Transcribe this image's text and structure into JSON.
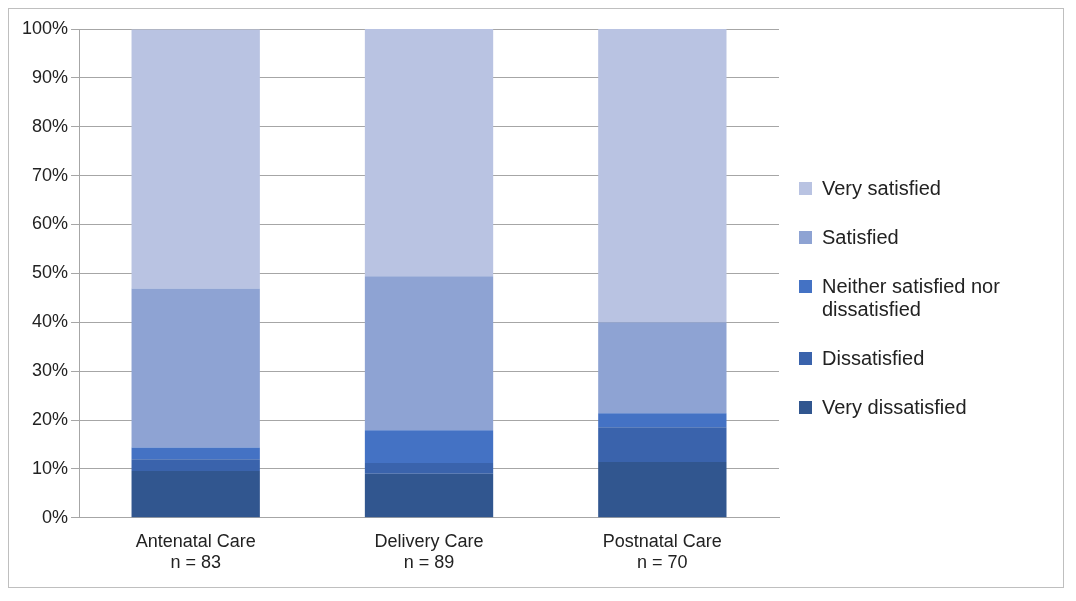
{
  "chart_data": {
    "type": "bar",
    "stacked": true,
    "categories": [
      "Antenatal Care\nn = 83",
      "Delivery Care\nn = 89",
      "Postnatal Care\nn = 70"
    ],
    "series": [
      {
        "name": "Very dissatisfied",
        "color": "#31568f",
        "values": [
          9.6,
          9.0,
          11.4
        ]
      },
      {
        "name": "Dissatisfied",
        "color": "#3a63ac",
        "values": [
          2.4,
          2.2,
          7.1
        ]
      },
      {
        "name": "Neither satisfied nor dissatisfied",
        "color": "#4472c4",
        "values": [
          2.4,
          6.7,
          2.9
        ]
      },
      {
        "name": "Satisfied",
        "color": "#8ea3d3",
        "values": [
          32.5,
          31.5,
          18.6
        ]
      },
      {
        "name": "Very satisfied",
        "color": "#b9c3e2",
        "values": [
          53.0,
          50.6,
          60.0
        ]
      }
    ],
    "ylim": [
      0,
      100
    ],
    "yticks": [
      {
        "value": 0,
        "label": "0%"
      },
      {
        "value": 10,
        "label": "10%"
      },
      {
        "value": 20,
        "label": "20%"
      },
      {
        "value": 30,
        "label": "30%"
      },
      {
        "value": 40,
        "label": "40%"
      },
      {
        "value": 50,
        "label": "50%"
      },
      {
        "value": 60,
        "label": "60%"
      },
      {
        "value": 70,
        "label": "70%"
      },
      {
        "value": 80,
        "label": "80%"
      },
      {
        "value": 90,
        "label": "90%"
      },
      {
        "value": 100,
        "label": "100%"
      }
    ],
    "grid": "y",
    "legend": "right"
  }
}
